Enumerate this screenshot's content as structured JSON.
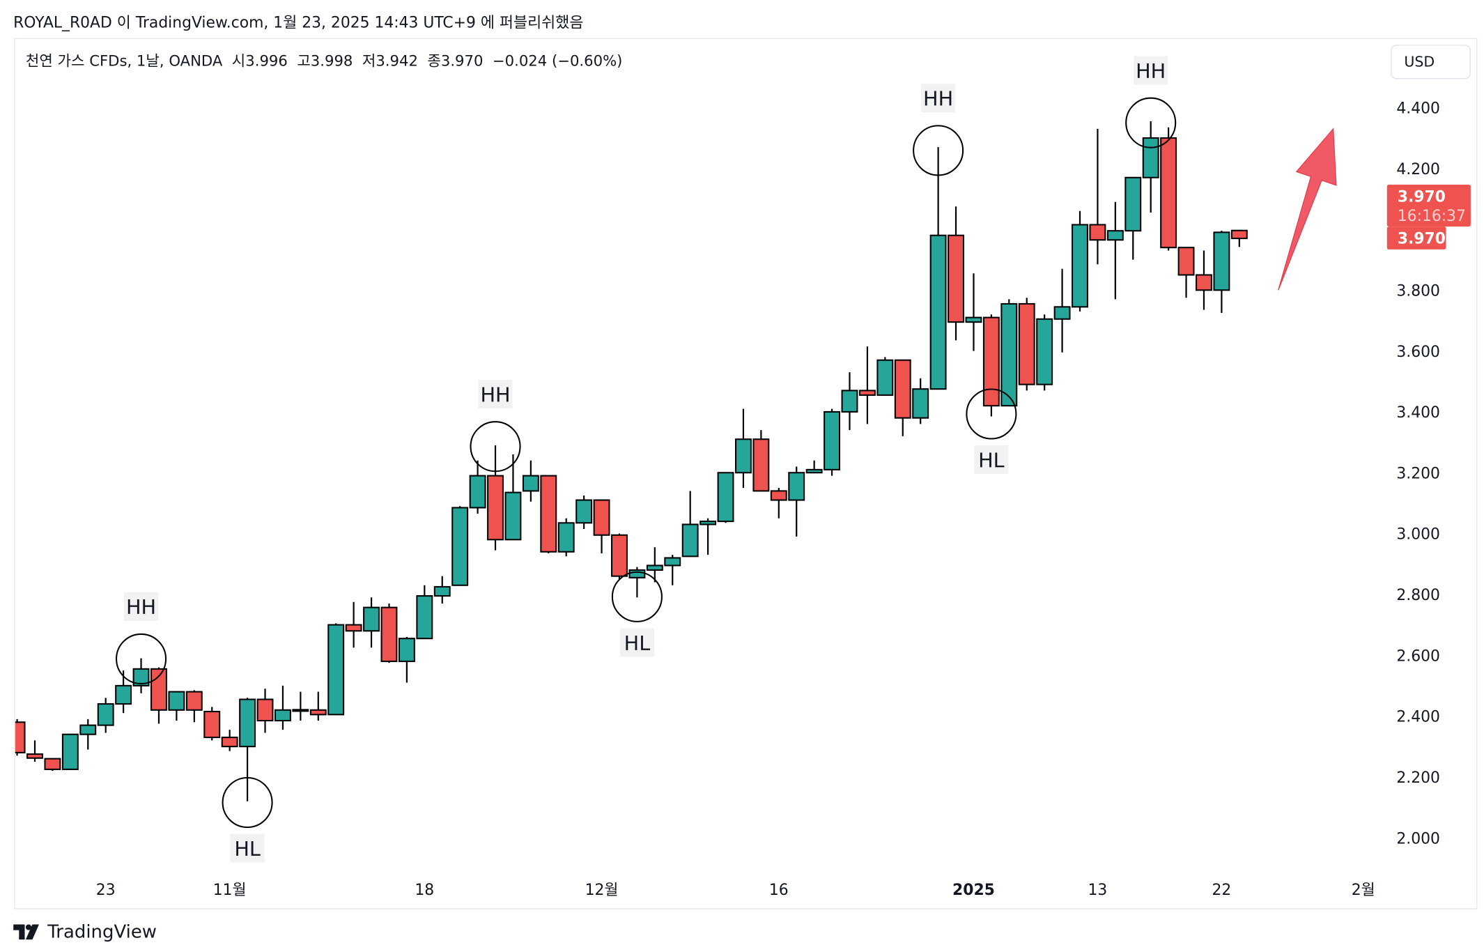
{
  "published_by": "ROYAL_R0AD 이 TradingView.com, 1월 23, 2025 14:43 UTC+9 에 퍼블리쉬했음",
  "legend": {
    "symbol": "천연 가스 CFDs, 1날, OANDA",
    "open": "시3.996",
    "high": "고3.998",
    "low": "저3.942",
    "close": "종3.970",
    "change": "−0.024 (−0.60%)"
  },
  "currency": "USD",
  "price_tag": {
    "price": "3.970",
    "countdown": "16:16:37",
    "last": "3.970"
  },
  "footer_brand": "TradingView",
  "colors": {
    "up": "#26a69a",
    "down": "#ef5350",
    "arrow": "#f05a66",
    "outline": "#000000"
  },
  "chart_data": {
    "type": "candlestick",
    "yticks": [
      "2.000",
      "2.200",
      "2.400",
      "2.600",
      "2.800",
      "3.000",
      "3.200",
      "3.400",
      "3.600",
      "3.800",
      "4.200",
      "4.400"
    ],
    "ylim": [
      2.0,
      4.4
    ],
    "xticks": [
      {
        "label": "23",
        "bar": 5
      },
      {
        "label": "11월",
        "bar": 12
      },
      {
        "label": "18",
        "bar": 23
      },
      {
        "label": "12월",
        "bar": 33
      },
      {
        "label": "16",
        "bar": 43
      },
      {
        "label": "2025",
        "bar": 54,
        "bold": true
      },
      {
        "label": "13",
        "bar": 61
      },
      {
        "label": "22",
        "bar": 68
      },
      {
        "label": "2월",
        "bar": 76
      }
    ],
    "ohlc": [
      [
        2.38,
        2.39,
        2.27,
        2.28
      ],
      [
        2.275,
        2.32,
        2.25,
        2.262
      ],
      [
        2.26,
        2.26,
        2.22,
        2.225
      ],
      [
        2.225,
        2.34,
        2.225,
        2.34
      ],
      [
        2.34,
        2.39,
        2.29,
        2.37
      ],
      [
        2.37,
        2.46,
        2.345,
        2.44
      ],
      [
        2.44,
        2.55,
        2.41,
        2.5
      ],
      [
        2.5,
        2.59,
        2.475,
        2.555
      ],
      [
        2.555,
        2.56,
        2.375,
        2.42
      ],
      [
        2.42,
        2.48,
        2.385,
        2.48
      ],
      [
        2.48,
        2.485,
        2.38,
        2.42
      ],
      [
        2.415,
        2.43,
        2.32,
        2.33
      ],
      [
        2.33,
        2.355,
        2.285,
        2.3
      ],
      [
        2.3,
        2.46,
        2.12,
        2.455
      ],
      [
        2.455,
        2.49,
        2.345,
        2.385
      ],
      [
        2.385,
        2.5,
        2.355,
        2.42
      ],
      [
        2.42,
        2.48,
        2.385,
        2.421
      ],
      [
        2.42,
        2.48,
        2.385,
        2.405
      ],
      [
        2.405,
        2.705,
        2.405,
        2.7
      ],
      [
        2.7,
        2.775,
        2.625,
        2.68
      ],
      [
        2.68,
        2.79,
        2.625,
        2.757
      ],
      [
        2.757,
        2.77,
        2.575,
        2.58
      ],
      [
        2.58,
        2.66,
        2.51,
        2.655
      ],
      [
        2.655,
        2.83,
        2.655,
        2.795
      ],
      [
        2.795,
        2.86,
        2.77,
        2.825
      ],
      [
        2.83,
        3.09,
        2.83,
        3.085
      ],
      [
        3.085,
        3.24,
        3.065,
        3.19
      ],
      [
        3.19,
        3.29,
        2.945,
        2.98
      ],
      [
        2.98,
        3.26,
        2.98,
        3.135
      ],
      [
        3.14,
        3.24,
        3.105,
        3.19
      ],
      [
        3.19,
        3.19,
        2.935,
        2.94
      ],
      [
        2.94,
        3.05,
        2.925,
        3.035
      ],
      [
        3.035,
        3.125,
        3.015,
        3.11
      ],
      [
        3.11,
        3.11,
        2.935,
        2.995
      ],
      [
        2.995,
        3.0,
        2.85,
        2.86
      ],
      [
        2.855,
        2.89,
        2.79,
        2.88
      ],
      [
        2.88,
        2.955,
        2.84,
        2.895
      ],
      [
        2.895,
        2.93,
        2.83,
        2.92
      ],
      [
        2.925,
        3.14,
        2.925,
        3.03
      ],
      [
        3.03,
        3.05,
        2.93,
        3.04
      ],
      [
        3.04,
        3.2,
        3.035,
        3.2
      ],
      [
        3.2,
        3.41,
        3.15,
        3.31
      ],
      [
        3.31,
        3.34,
        3.14,
        3.14
      ],
      [
        3.14,
        3.15,
        3.05,
        3.11
      ],
      [
        3.11,
        3.22,
        2.99,
        3.2
      ],
      [
        3.2,
        3.24,
        3.2,
        3.21
      ],
      [
        3.21,
        3.41,
        3.19,
        3.4
      ],
      [
        3.4,
        3.53,
        3.34,
        3.47
      ],
      [
        3.47,
        3.615,
        3.36,
        3.455
      ],
      [
        3.455,
        3.58,
        3.455,
        3.57
      ],
      [
        3.57,
        3.57,
        3.32,
        3.38
      ],
      [
        3.38,
        3.51,
        3.36,
        3.475
      ],
      [
        3.475,
        4.27,
        3.475,
        3.98
      ],
      [
        3.98,
        4.075,
        3.635,
        3.695
      ],
      [
        3.695,
        3.855,
        3.6,
        3.71
      ],
      [
        3.71,
        3.72,
        3.385,
        3.42
      ],
      [
        3.42,
        3.77,
        3.42,
        3.755
      ],
      [
        3.755,
        3.775,
        3.47,
        3.49
      ],
      [
        3.49,
        3.72,
        3.47,
        3.705
      ],
      [
        3.705,
        3.87,
        3.595,
        3.745
      ],
      [
        3.745,
        4.06,
        3.73,
        4.015
      ],
      [
        4.015,
        4.33,
        3.885,
        3.965
      ],
      [
        3.965,
        4.09,
        3.77,
        3.995
      ],
      [
        3.995,
        4.17,
        3.9,
        4.17
      ],
      [
        4.17,
        4.355,
        4.055,
        4.3
      ],
      [
        4.3,
        4.335,
        3.93,
        3.94
      ],
      [
        3.94,
        3.94,
        3.775,
        3.85
      ],
      [
        3.85,
        3.93,
        3.735,
        3.8
      ],
      [
        3.8,
        3.995,
        3.725,
        3.99
      ],
      [
        3.996,
        3.998,
        3.942,
        3.97
      ]
    ],
    "annotations": [
      {
        "label": "HH",
        "bar": 7,
        "price": 2.588,
        "side": "above"
      },
      {
        "label": "HL",
        "bar": 13,
        "price": 2.116,
        "side": "below"
      },
      {
        "label": "HH",
        "bar": 27,
        "price": 3.286,
        "side": "above"
      },
      {
        "label": "HL",
        "bar": 35,
        "price": 2.792,
        "side": "below"
      },
      {
        "label": "HH",
        "bar": 52,
        "price": 4.259,
        "side": "above"
      },
      {
        "label": "HL",
        "bar": 55,
        "price": 3.393,
        "side": "below"
      },
      {
        "label": "HH",
        "bar": 64,
        "price": 4.35,
        "side": "above"
      }
    ],
    "arrow": {
      "from": {
        "bar": 71.2,
        "price": 3.8
      },
      "to": {
        "bar": 74.3,
        "price": 4.33
      }
    }
  }
}
